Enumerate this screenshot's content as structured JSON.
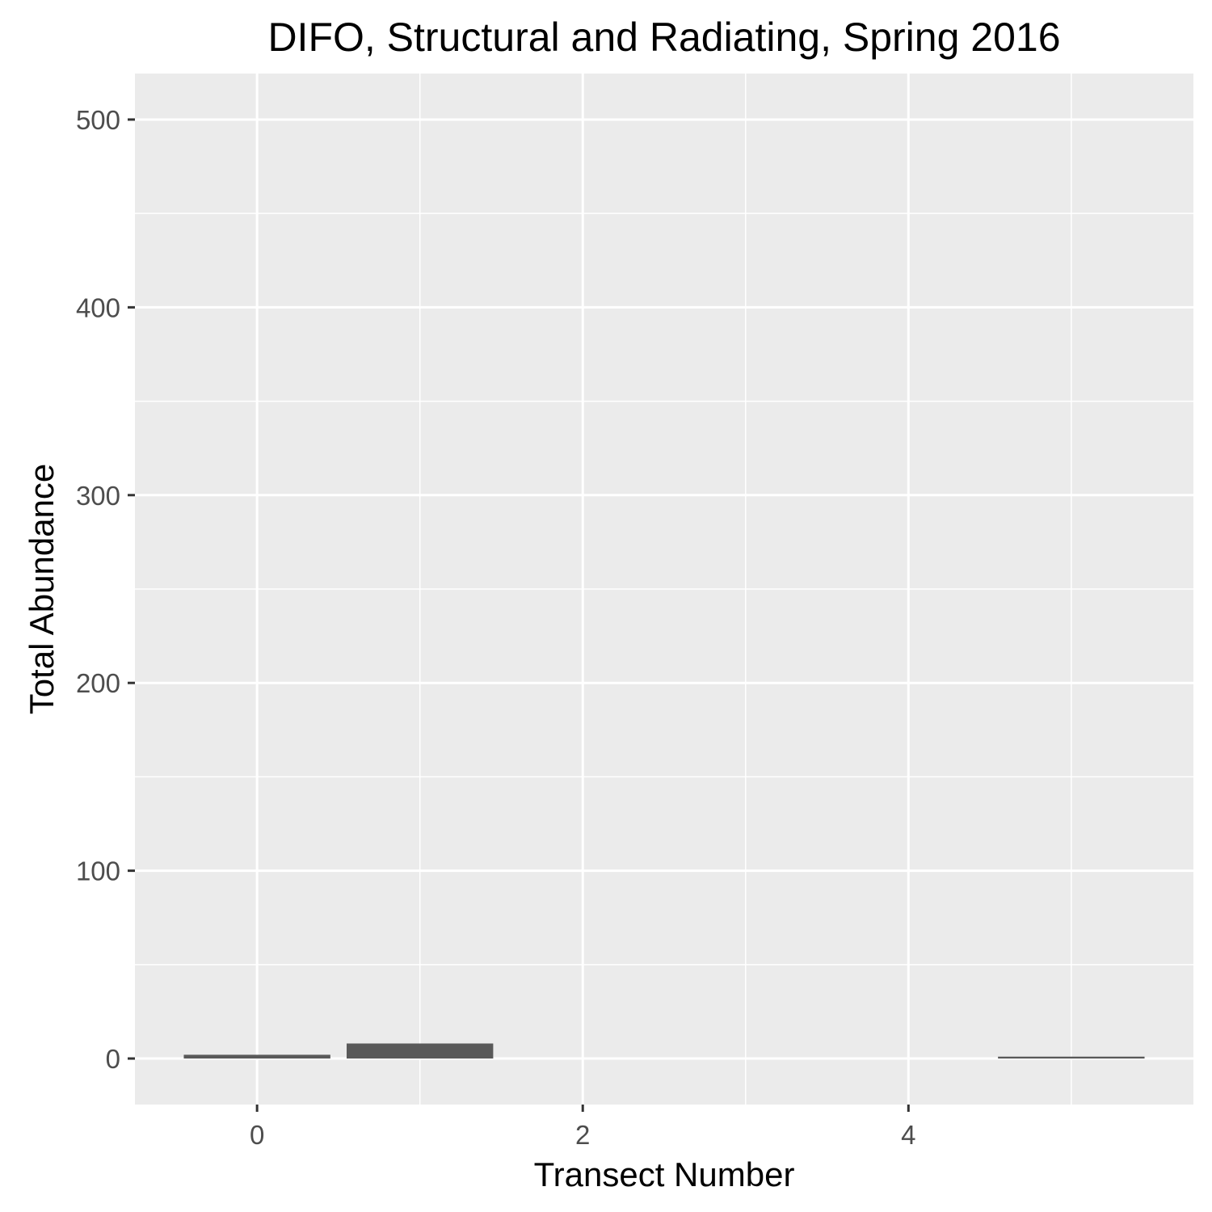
{
  "chart_data": {
    "type": "bar",
    "title": "DIFO, Structural and Radiating, Spring 2016",
    "xlabel": "Transect Number",
    "ylabel": "Total Abundance",
    "x": [
      0,
      1,
      5
    ],
    "values": [
      2,
      8,
      1
    ],
    "bar_width": 0.9,
    "xlim": [
      -0.75,
      5.75
    ],
    "ylim": [
      -24.5,
      524.5
    ],
    "x_ticks": [
      0,
      2,
      4
    ],
    "x_tick_labels": [
      "0",
      "2",
      "4"
    ],
    "x_minor_ticks": [
      1,
      3,
      5
    ],
    "y_ticks": [
      0,
      100,
      200,
      300,
      400,
      500
    ],
    "y_tick_labels": [
      "0",
      "100",
      "200",
      "300",
      "400",
      "500"
    ],
    "y_minor_ticks": [
      50,
      150,
      250,
      350,
      450
    ],
    "grid": true,
    "colors": {
      "panel_background": "#ebebeb",
      "grid": "#ffffff",
      "bar_fill": "#595959",
      "tick_text": "#4d4d4d",
      "tick_mark": "#333333",
      "title_text": "#000000"
    }
  }
}
